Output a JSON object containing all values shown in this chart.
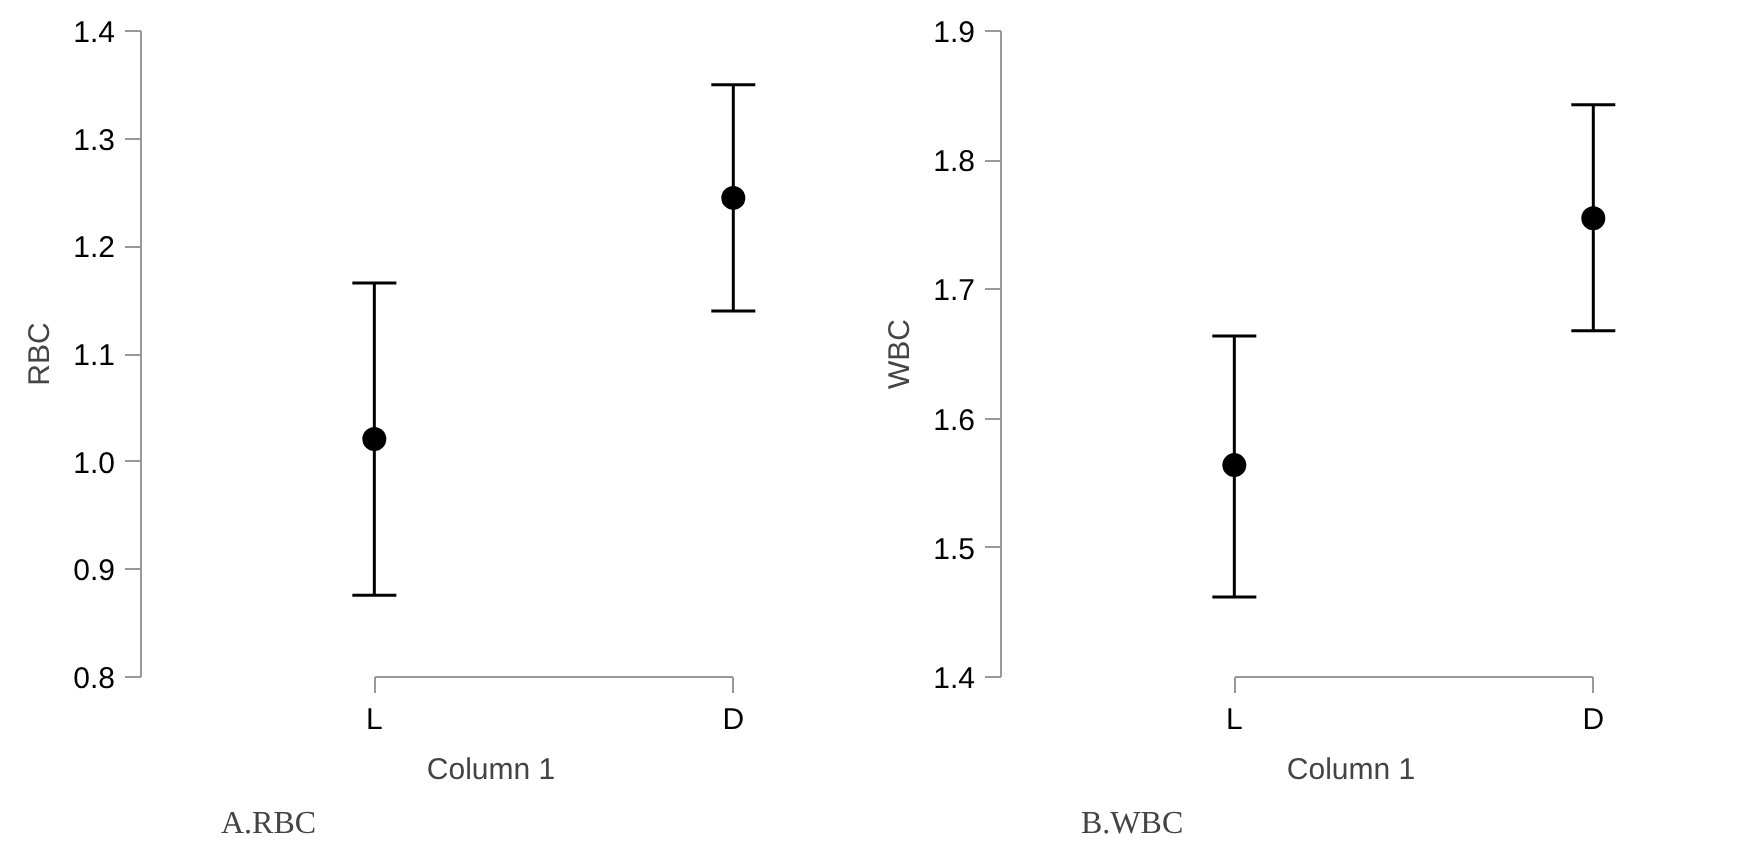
{
  "chart_data": [
    {
      "type": "scatter",
      "categories": [
        "L",
        "D"
      ],
      "values": [
        1.021,
        1.245
      ],
      "errors": [
        [
          0.876,
          1.166
        ],
        [
          1.14,
          1.35
        ]
      ],
      "color": "#000000",
      "marker": "circle",
      "xlabel": "Column 1",
      "ylabel": "RBC",
      "ylim": [
        0.8,
        1.4
      ],
      "yticks": [
        0.8,
        0.9,
        {
          "value": 1.0,
          "label": "1.0"
        },
        1.1,
        1.2,
        1.3,
        1.4
      ],
      "grid": false,
      "annotations": [
        "A.RBC"
      ]
    },
    {
      "type": "scatter",
      "categories": [
        "L",
        "D"
      ],
      "values": [
        1.564,
        1.755
      ],
      "errors": [
        [
          1.462,
          1.664
        ],
        [
          1.668,
          1.843
        ]
      ],
      "color": "#000000",
      "marker": "circle",
      "xlabel": "Column 1",
      "ylabel": "WBC",
      "ylim": [
        1.4,
        1.9
      ],
      "yticks": [
        1.4,
        1.5,
        1.6,
        1.7,
        1.8,
        1.9
      ],
      "grid": false,
      "annotations": [
        "B.WBC"
      ]
    }
  ]
}
